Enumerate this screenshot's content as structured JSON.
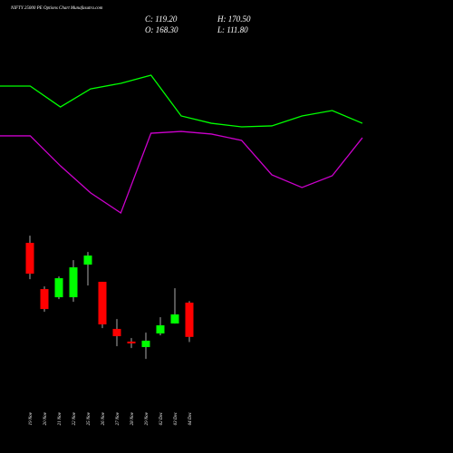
{
  "chart_data": [
    {
      "type": "line",
      "title": "NIFTY 25000  PE Options  Chart Munafasutra.com",
      "header": [
        "C: 119.20",
        "H: 170.50",
        "O: 168.30",
        "L: 111.80"
      ],
      "ylim": [
        0,
        100
      ],
      "series": [
        {
          "color": "#00ff00",
          "values": [
            86.1,
            86.1,
            73.3,
            84.4,
            87.8,
            92.8,
            67.8,
            63.3,
            61.1,
            61.7,
            67.8,
            71.1,
            63.3
          ]
        },
        {
          "color": "#cc00cc",
          "values": [
            55.6,
            55.6,
            37.2,
            20.6,
            8.3,
            57.2,
            58.3,
            56.7,
            52.8,
            31.7,
            23.9,
            31.1,
            54.4
          ]
        }
      ]
    },
    {
      "type": "candlestick",
      "categories": [
        "19 Nov",
        "20 Nov",
        "21 Nov",
        "22 Nov",
        "25 Nov",
        "26 Nov",
        "27 Nov",
        "28 Nov",
        "29 Nov",
        "02 Dec",
        "03 Dec",
        "04 Dec"
      ],
      "ylim": [
        80,
        275
      ],
      "up_color": "#00ff00",
      "down_color": "#ff0000",
      "open": [
        254.1,
        187.8,
        176.1,
        176.1,
        222.9,
        198.2,
        130.6,
        112.4,
        104.6,
        124.1,
        138.4,
        168.3
      ],
      "high": [
        264.5,
        191.7,
        206.0,
        229.4,
        241.1,
        198.2,
        144.9,
        117.6,
        125.4,
        147.5,
        189.1,
        170.5
      ],
      "low": [
        202.1,
        155.3,
        173.5,
        169.6,
        193.0,
        131.9,
        105.9,
        103.3,
        87.7,
        121.5,
        138.4,
        111.8
      ],
      "close": [
        209.9,
        159.2,
        203.4,
        219.0,
        235.9,
        137.1,
        120.2,
        109.8,
        113.7,
        135.8,
        151.4,
        119.2
      ]
    }
  ]
}
